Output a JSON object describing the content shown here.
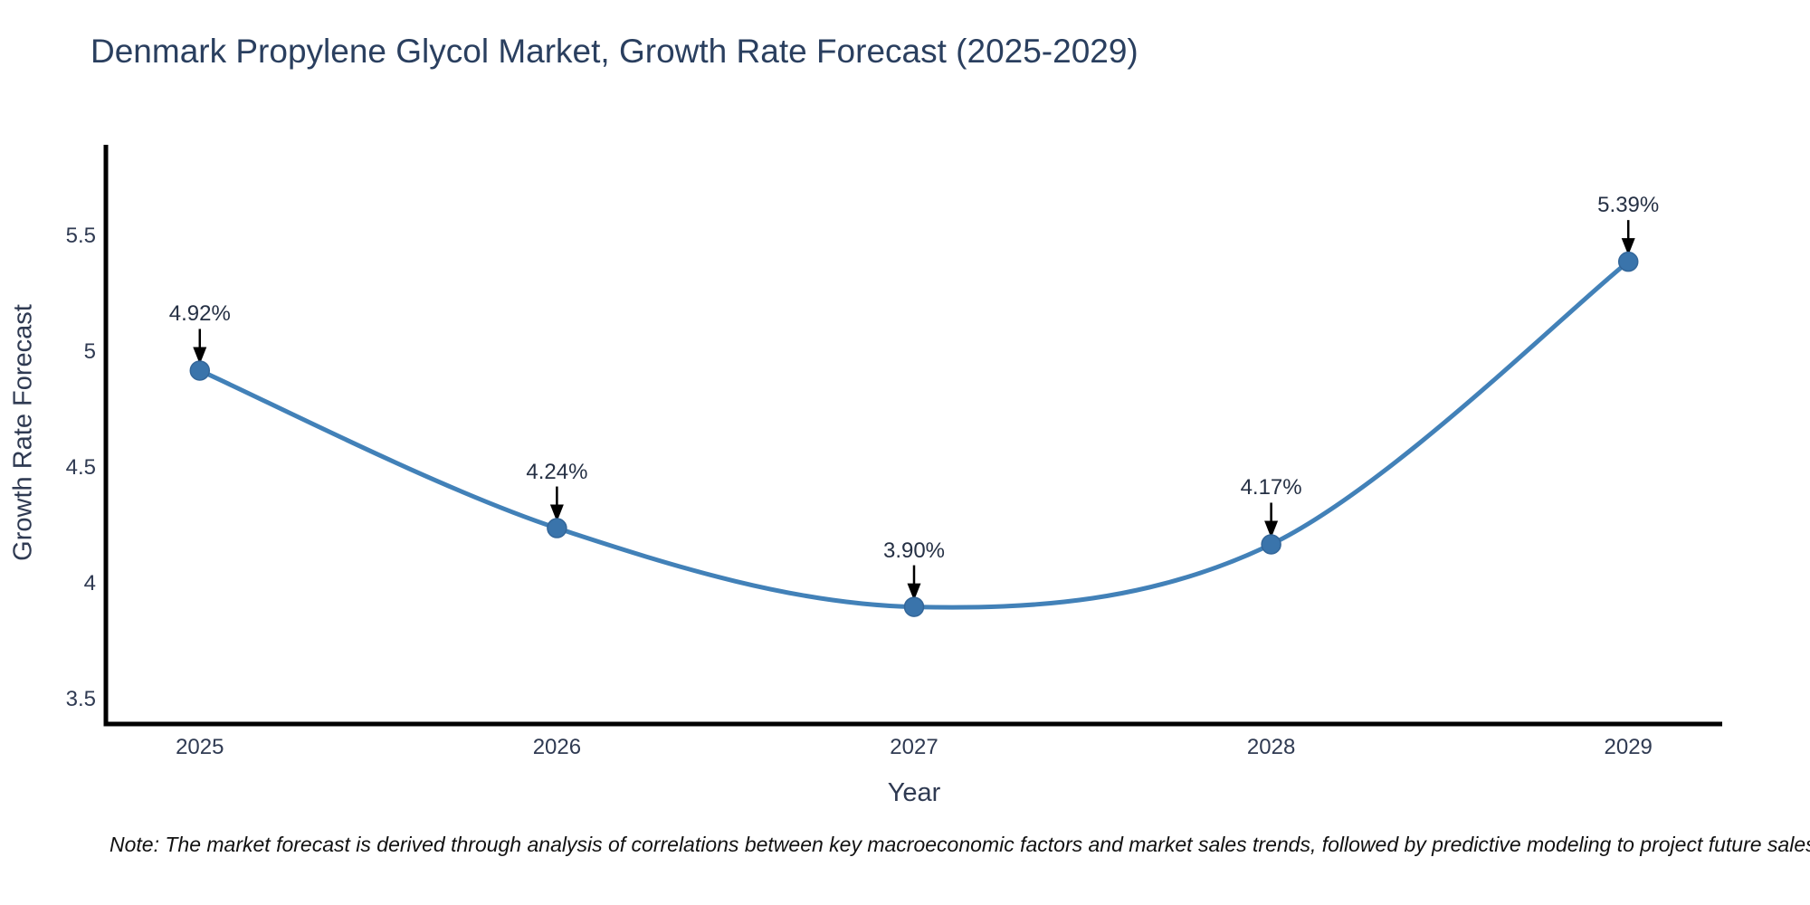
{
  "title": "Denmark Propylene Glycol Market, Growth Rate Forecast (2025-2029)",
  "note": "Note: The market forecast is derived through analysis of correlations between key macroeconomic factors and market sales trends, followed by predictive modeling to project future sales.",
  "chart_data": {
    "type": "line",
    "title": "Denmark Propylene Glycol Market, Growth Rate Forecast (2025-2029)",
    "x": [
      2025,
      2026,
      2027,
      2028,
      2029
    ],
    "values": [
      4.92,
      4.24,
      3.9,
      4.17,
      5.39
    ],
    "point_labels": [
      "4.92%",
      "4.24%",
      "3.90%",
      "4.17%",
      "5.39%"
    ],
    "x_ticks": [
      "2025",
      "2026",
      "2027",
      "2028",
      "2029"
    ],
    "y_ticks": [
      3.5,
      4,
      4.5,
      5,
      5.5
    ],
    "xlabel": "Year",
    "ylabel": "Growth Rate Forecast",
    "xlim": [
      2024.737,
      2029.263
    ],
    "ylim": [
      3.3945,
      5.8945
    ],
    "grid": false,
    "legend": false,
    "line_shape": "spline",
    "line_color": "#4281b8",
    "marker_color": "#3a74ab",
    "marker_edge_color": "#336699",
    "axis_line_color": "#000000",
    "annotation_arrow_color": "#000000"
  }
}
